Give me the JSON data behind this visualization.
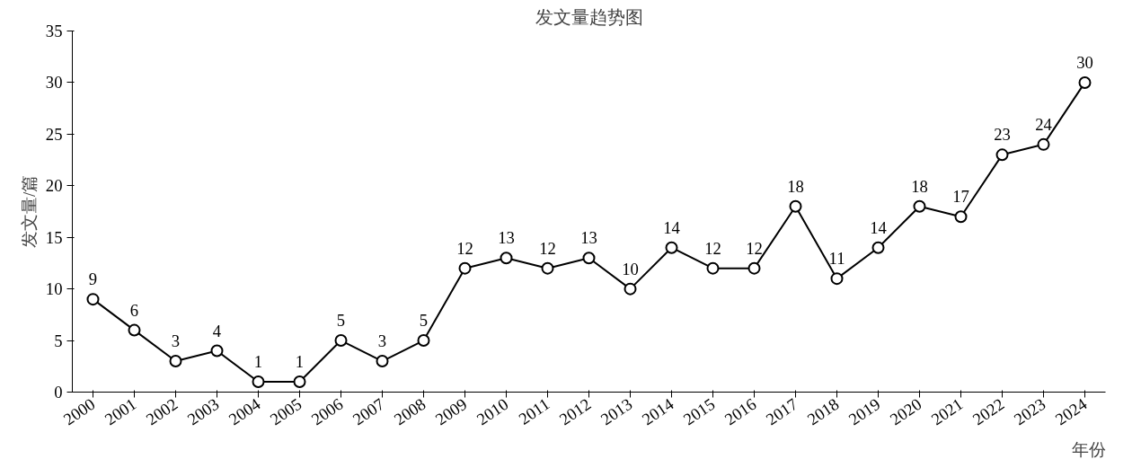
{
  "chart_data": {
    "type": "line",
    "title": "发文量趋势图",
    "xlabel": "年份",
    "ylabel": "发文量/篇",
    "categories": [
      "2000",
      "2001",
      "2002",
      "2003",
      "2004",
      "2005",
      "2006",
      "2007",
      "2008",
      "2009",
      "2010",
      "2011",
      "2012",
      "2013",
      "2014",
      "2015",
      "2016",
      "2017",
      "2018",
      "2019",
      "2020",
      "2021",
      "2022",
      "2023",
      "2024"
    ],
    "series": [
      {
        "color": "#000000",
        "values": [
          9,
          6,
          3,
          4,
          1,
          1,
          5,
          3,
          5,
          12,
          13,
          12,
          13,
          10,
          14,
          12,
          12,
          18,
          11,
          14,
          18,
          17,
          23,
          24,
          30
        ]
      }
    ],
    "ylim": [
      0,
      35
    ],
    "yticks": [
      0,
      5,
      10,
      15,
      20,
      25,
      30,
      35
    ],
    "grid": false,
    "marker": "circle",
    "data_labels": true
  }
}
